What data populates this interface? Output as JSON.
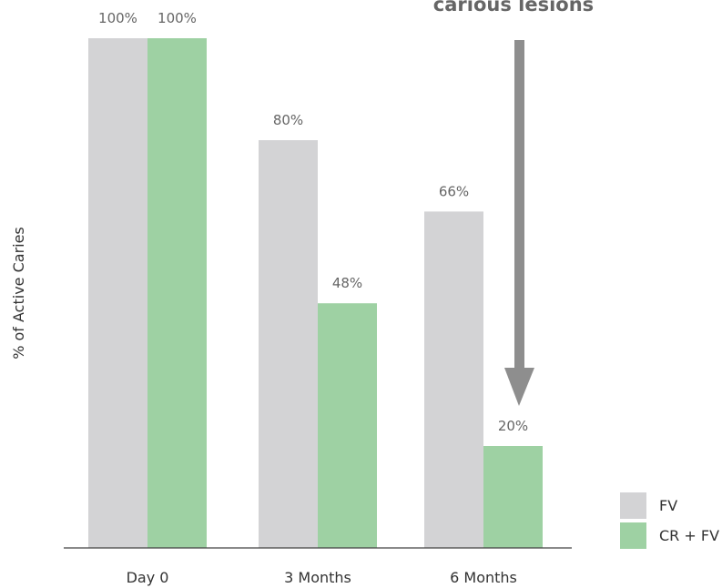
{
  "chart_data": {
    "type": "bar",
    "title": "",
    "xlabel": "",
    "ylabel": "% of Active Caries",
    "ylim": [
      0,
      100
    ],
    "grid": false,
    "legend_position": "bottom-right",
    "categories": [
      "Day 0",
      "3 Months",
      "6 Months"
    ],
    "series": [
      {
        "name": "FV",
        "values": [
          100,
          80,
          66
        ],
        "labels": [
          "100%",
          "80%",
          "66%"
        ],
        "color": "#d3d3d5"
      },
      {
        "name": "CR + FV",
        "values": [
          100,
          48,
          20
        ],
        "labels": [
          "100%",
          "48%",
          "20%"
        ],
        "color": "#9ed1a3"
      }
    ],
    "annotation": {
      "text": "carious lesions",
      "arrow": "down",
      "color": "#8e8e8e"
    }
  }
}
